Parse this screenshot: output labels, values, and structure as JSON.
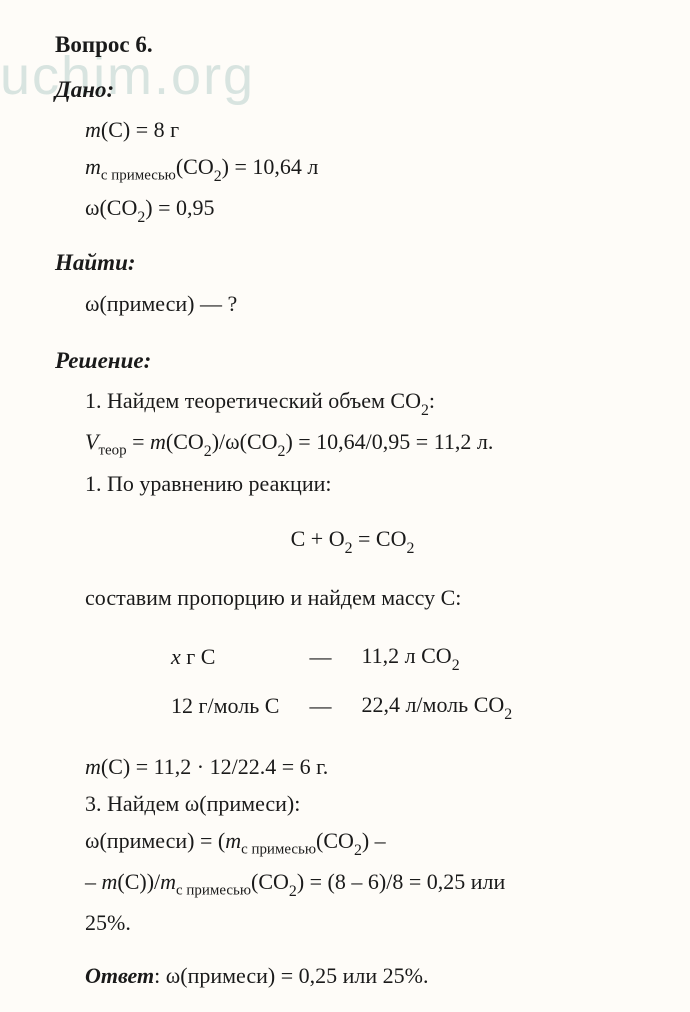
{
  "watermark_text": "uchim.org",
  "background_color": "#fefcf8",
  "text_color": "#1a1a1a",
  "watermark_color": "#d8e4e0",
  "title": "Вопрос 6.",
  "given_label": "Дано:",
  "given": {
    "l1_a": "m",
    "l1_b": "(C) = 8 г",
    "l2_a": "m",
    "l2_sub": "с примесью",
    "l2_b": "(CO",
    "l2_sub2": "2",
    "l2_c": ") = 10,64 л",
    "l3_a": "ω(CO",
    "l3_sub": "2",
    "l3_b": ") = 0,95"
  },
  "find_label": "Найти:",
  "find": {
    "text": "ω(примеси)   —  ?"
  },
  "solution_label": "Решение:",
  "solution": {
    "s1": "1. Найдем теоретический объем CO",
    "s1_sub": "2",
    "s1_end": ":",
    "s2_a": "V",
    "s2_sub": "теор",
    "s2_b": " = ",
    "s2_c": "m",
    "s2_d": "(CO",
    "s2_sub2": "2",
    "s2_e": ")/ω(CO",
    "s2_sub3": "2",
    "s2_f": ") = 10,64/0,95 = 11,2 л.",
    "s3": "1. По уравнению реакции:",
    "eq_a": "C + O",
    "eq_sub1": "2",
    "eq_b": " = CO",
    "eq_sub2": "2",
    "s4": "составим пропорцию и найдем массу C:",
    "prop": {
      "r1c1_a": "x",
      "r1c1_b": " г C",
      "dash": "—",
      "r1c3_a": "11,2 л CO",
      "r1c3_sub": "2",
      "r2c1": "12  г/моль C",
      "r2c3_a": "22,4 л/моль CO",
      "r2c3_sub": "2"
    },
    "s5_a": "m",
    "s5_b": "(C) = 11,2 · 12/22.4 = 6 г.",
    "s6": "3. Найдем ω(примеси):",
    "s7_a": "ω(примеси) = (",
    "s7_b": "m",
    "s7_sub": "с примесью",
    "s7_c": "(CO",
    "s7_sub2": "2",
    "s7_d": ") –",
    "s8_a": "– ",
    "s8_b": "m",
    "s8_c": "(C))/",
    "s8_d": "m",
    "s8_sub": "с примесью",
    "s8_e": "(CO",
    "s8_sub2": "2",
    "s8_f": ") = (8 – 6)/8 = 0,25 или",
    "s9": "25%."
  },
  "answer_label": "Ответ",
  "answer_text": ": ω(примеси) = 0,25 или 25%."
}
